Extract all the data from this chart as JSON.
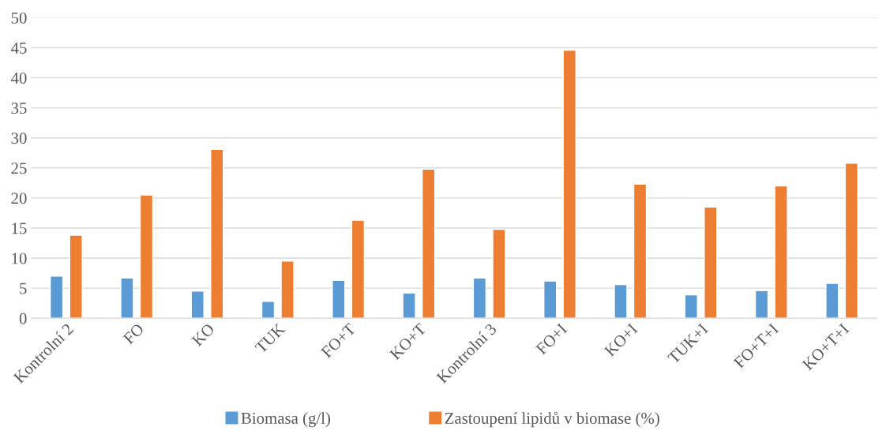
{
  "chart_data": {
    "type": "bar",
    "categories": [
      "Kontrolní 2",
      "FO",
      "KO",
      "TUK",
      "FO+T",
      "KO+T",
      "Kontrolní 3",
      "FO+I",
      "KO+I",
      "TUK+I",
      "FO+T+I",
      "KO+T+I"
    ],
    "series": [
      {
        "name": "Biomasa (g/l)",
        "color": "#5b9bd5",
        "values": [
          7.0,
          6.7,
          4.5,
          2.8,
          6.3,
          4.2,
          6.7,
          6.2,
          5.6,
          3.9,
          4.6,
          5.8
        ]
      },
      {
        "name": "Zastoupení lipidů v biomase (%)",
        "color": "#ed7d31",
        "values": [
          13.8,
          20.5,
          28.1,
          9.5,
          16.3,
          24.8,
          14.8,
          44.6,
          22.3,
          18.5,
          22.0,
          25.8
        ]
      }
    ],
    "ylim": [
      0,
      50
    ],
    "yticks": [
      0,
      5,
      10,
      15,
      20,
      25,
      30,
      35,
      40,
      45,
      50
    ],
    "grid": "y",
    "legend": "bottom"
  }
}
